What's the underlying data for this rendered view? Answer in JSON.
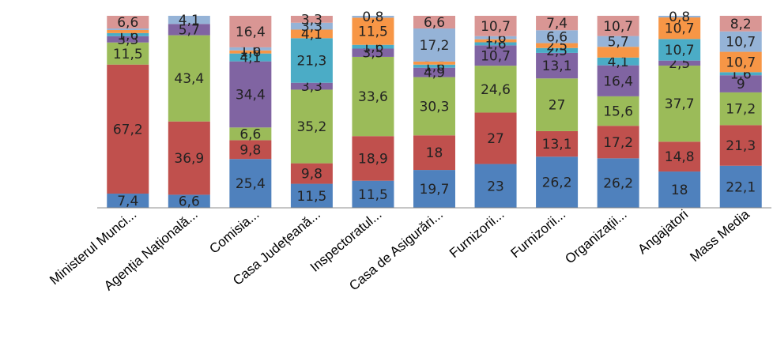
{
  "chart_data": {
    "type": "bar",
    "stacked": true,
    "percent": true,
    "categories": [
      "Ministerul Munci...",
      "Agenția Națională...",
      "Comisia...",
      "Casa Județeană...",
      "Inspectoratul...",
      "Casa de Asigurări...",
      "Furnizorii...",
      "Furnizorii...",
      "Organizații...",
      "Angajatori",
      "Mass Media"
    ],
    "series": [
      {
        "color": "#4F81BD",
        "values": [
          7.4,
          6.6,
          25.4,
          11.5,
          11.5,
          19.7,
          23,
          26.2,
          26.2,
          18,
          22.1
        ],
        "labels": [
          "7,4",
          "6,6",
          "25,4",
          "11,5",
          "11,5",
          "19,7",
          "23",
          "26,2",
          "26,2",
          "18",
          "22,1"
        ]
      },
      {
        "color": "#C0504D",
        "values": [
          67.2,
          36.9,
          9.8,
          9.8,
          18.9,
          18,
          27,
          13.1,
          17.2,
          14.8,
          21.3
        ],
        "labels": [
          "67,2",
          "36,9",
          "9,8",
          "9,8",
          "18,9",
          "18",
          "27",
          "13,1",
          "17,2",
          "14,8",
          "21,3"
        ]
      },
      {
        "color": "#9BBB59",
        "values": [
          11.5,
          43.4,
          6.6,
          35.2,
          33.6,
          30.3,
          24.6,
          27,
          15.6,
          37.7,
          17.2
        ],
        "labels": [
          "11,5",
          "43,4",
          "6,6",
          "35,2",
          "33,6",
          "30,3",
          "24,6",
          "27",
          "15,6",
          "37,7",
          "17,2"
        ]
      },
      {
        "color": "#8064A2",
        "values": [
          3.3,
          5.7,
          34.4,
          3.3,
          3.5,
          4.9,
          10.7,
          13.1,
          16.4,
          2.5,
          9
        ],
        "labels": [
          "3,3",
          "5,7",
          "34,4",
          "3,3",
          "3,5",
          "4,9",
          "10,7",
          "13,1",
          "16,4",
          "2,5",
          "9"
        ]
      },
      {
        "color": "#4BACC6",
        "values": [
          1.6,
          0,
          4.1,
          21.3,
          1.6,
          1.6,
          1.6,
          2.5,
          4.1,
          10.7,
          1.6
        ],
        "labels": [
          "1,6",
          "",
          "4,1",
          "21,3",
          "1,6",
          "1,6",
          "1,6",
          "2,5",
          "4,1",
          "10,7",
          "1,6"
        ]
      },
      {
        "color": "#F79646",
        "values": [
          1.6,
          0,
          1.6,
          4.1,
          11.5,
          1.6,
          1.6,
          2.5,
          5.7,
          10.7,
          10.7
        ],
        "labels": [
          "",
          "",
          "1,6",
          "4,1",
          "11,5",
          "",
          "",
          "2,5",
          "",
          "10,7",
          "10,7"
        ]
      },
      {
        "color": "#95B3D7",
        "values": [
          0.8,
          4.1,
          1.6,
          3.3,
          0.8,
          17.2,
          1.6,
          6.6,
          5.7,
          0.8,
          10.7
        ],
        "labels": [
          "",
          "4,1",
          "1,6",
          "3,3",
          "0,8",
          "17,2",
          "1,6",
          "6,6",
          "5,7",
          "0,8",
          "10,7"
        ]
      },
      {
        "color": "#D99694",
        "values": [
          6.6,
          0,
          16.4,
          3.3,
          0,
          6.6,
          10.7,
          7.4,
          10.7,
          0,
          8.2
        ],
        "labels": [
          "6,6",
          "",
          "16,4",
          "3,3",
          "",
          "6,6",
          "10,7",
          "7,4",
          "10,7",
          "",
          "8,2"
        ]
      }
    ],
    "ylim": [
      0,
      100
    ],
    "grid": false,
    "legend": "none",
    "xlabel": "",
    "ylabel": "",
    "title": ""
  }
}
